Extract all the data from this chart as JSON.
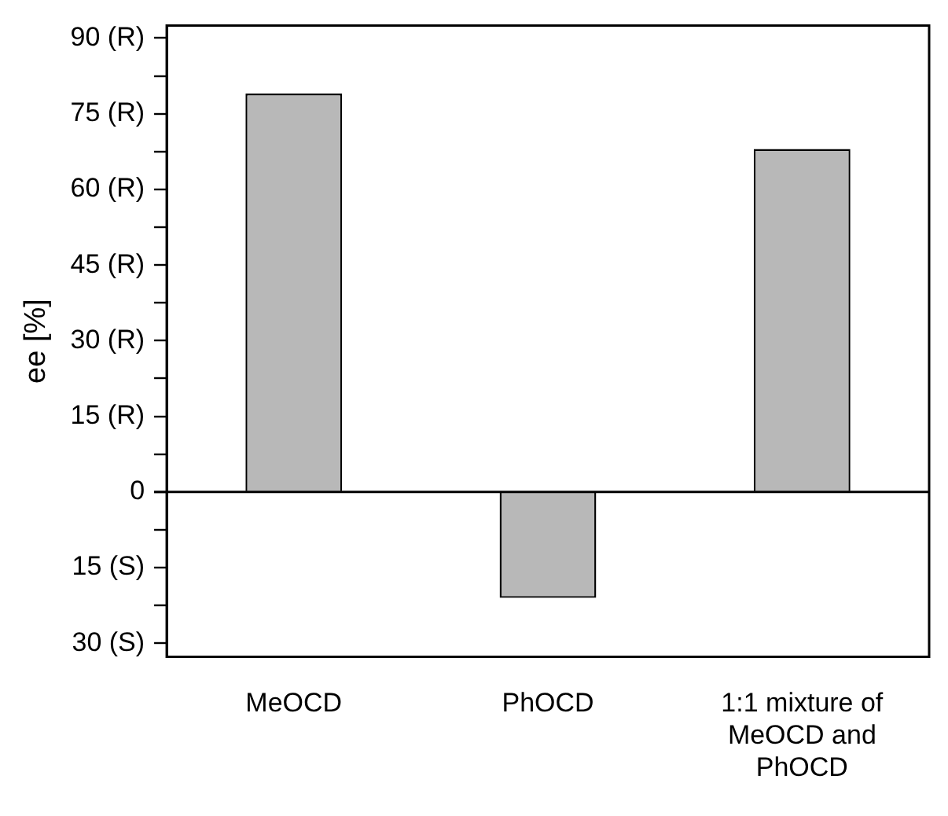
{
  "chart_data": {
    "type": "bar",
    "ylabel": "ee [%]",
    "categories": [
      "MeOCD",
      "PhOCD",
      "1:1 mixture of MeOCD and PhOCD"
    ],
    "values": [
      79,
      -21,
      68
    ],
    "color": "#b8b8b8",
    "ylim": [
      -32.7,
      92.5
    ],
    "yticks": [
      {
        "value": -30,
        "label": "30 (S)"
      },
      {
        "value": -22.5,
        "label": null
      },
      {
        "value": -15,
        "label": "15 (S)"
      },
      {
        "value": -7.5,
        "label": null
      },
      0,
      {
        "value": 7.5,
        "label": null
      },
      {
        "value": 15,
        "label": "15 (R)"
      },
      {
        "value": 22.5,
        "label": null
      },
      {
        "value": 30,
        "label": "30 (R)"
      },
      {
        "value": 37.5,
        "label": null
      },
      {
        "value": 45,
        "label": "45 (R)"
      },
      {
        "value": 52.5,
        "label": null
      },
      {
        "value": 60,
        "label": "60 (R)"
      },
      {
        "value": 67.5,
        "label": null
      },
      {
        "value": 75,
        "label": "75 (R)"
      },
      {
        "value": 82.5,
        "label": null
      },
      {
        "value": 90,
        "label": "90 (R)"
      }
    ],
    "ref_lines": [
      {
        "axis": "y",
        "value": 0,
        "color": "#000000"
      }
    ],
    "grid": false,
    "legend": false
  }
}
